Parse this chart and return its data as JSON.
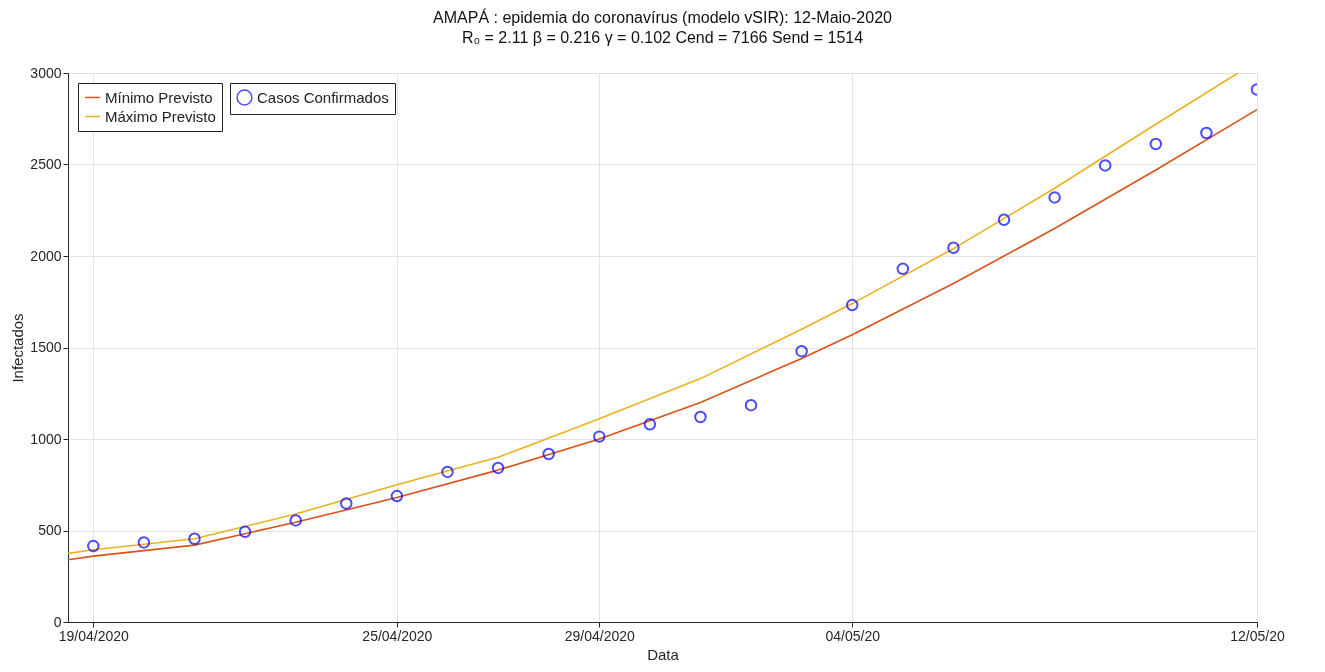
{
  "chart_data": {
    "type": "line",
    "title": "AMAPÁ : epidemia do coronavírus (modelo vSIR): 12-Maio-2020",
    "subtitle": "R₀ =  2.11  β =  0.216  γ =  0.102   Cend =  7166  Send =  1514",
    "xlabel": "Data",
    "ylabel": "Infectados",
    "xlim": [
      "2020-04-18T12:00",
      "2020-05-12"
    ],
    "xticks": [
      {
        "value": "2020-04-19",
        "label": "19/04/2020"
      },
      {
        "value": "2020-04-25",
        "label": "25/04/2020"
      },
      {
        "value": "2020-04-29",
        "label": "29/04/2020"
      },
      {
        "value": "2020-05-04",
        "label": "04/05/20"
      },
      {
        "value": "2020-05-12",
        "label": "12/05/20"
      }
    ],
    "ylim": [
      0,
      3000
    ],
    "yticks": [
      0,
      500,
      1000,
      1500,
      2000,
      2500,
      3000
    ],
    "grid": true,
    "legend": "top left",
    "series": [
      {
        "name": "Mínimo Previsto",
        "color": "#d95319",
        "x": [
          "2020-04-18T12:00",
          "2020-04-19",
          "2020-04-21",
          "2020-04-23",
          "2020-04-25",
          "2020-04-27",
          "2020-04-29",
          "2020-05-01",
          "2020-05-03",
          "2020-05-04",
          "2020-05-06",
          "2020-05-08",
          "2020-05-10",
          "2020-05-12"
        ],
        "values": [
          340,
          360,
          420,
          545,
          680,
          830,
          1000,
          1200,
          1440,
          1570,
          1850,
          2150,
          2470,
          2800
        ]
      },
      {
        "name": "Máximo Previsto",
        "color": "#edb120",
        "x": [
          "2020-04-18T12:00",
          "2020-04-19",
          "2020-04-21",
          "2020-04-23",
          "2020-04-25",
          "2020-04-27",
          "2020-04-29",
          "2020-05-01",
          "2020-05-03",
          "2020-05-04",
          "2020-05-06",
          "2020-05-08",
          "2020-05-10",
          "2020-05-11T15:00"
        ],
        "values": [
          375,
          395,
          455,
          590,
          750,
          900,
          1110,
          1330,
          1600,
          1740,
          2040,
          2370,
          2720,
          3000
        ]
      },
      {
        "name": "Casos Confirmados",
        "type": "scatter",
        "marker": "circle",
        "color": "#0000ff",
        "x": [
          "2020-04-19",
          "2020-04-20",
          "2020-04-21",
          "2020-04-22",
          "2020-04-23",
          "2020-04-24",
          "2020-04-25",
          "2020-04-26",
          "2020-04-27",
          "2020-04-28",
          "2020-04-29",
          "2020-04-30",
          "2020-05-01",
          "2020-05-02",
          "2020-05-03",
          "2020-05-04",
          "2020-05-05",
          "2020-05-06",
          "2020-05-07",
          "2020-05-08",
          "2020-05-09",
          "2020-05-10",
          "2020-05-11",
          "2020-05-12"
        ],
        "values": [
          415,
          435,
          455,
          493,
          555,
          648,
          688,
          820,
          842,
          918,
          1013,
          1080,
          1120,
          1185,
          1480,
          1732,
          1930,
          2045,
          2198,
          2320,
          2495,
          2612,
          2672,
          2910
        ]
      }
    ]
  }
}
